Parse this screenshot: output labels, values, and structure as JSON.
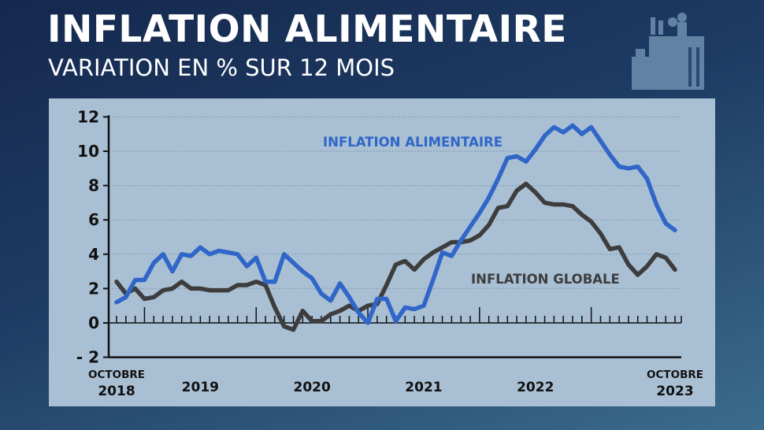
{
  "header": {
    "title": "INFLATION ALIMENTAIRE",
    "subtitle": "VARIATION EN % SUR 12 MOIS",
    "icon": "grocery-bag-icon"
  },
  "chart_data": {
    "type": "line",
    "title": "INFLATION ALIMENTAIRE",
    "subtitle": "VARIATION EN % SUR 12 MOIS",
    "x_start": "2018-10",
    "x_end": "2023-10",
    "x_frequency": "monthly",
    "ylim": [
      -2,
      12
    ],
    "y_ticks": [
      "12",
      "10",
      "8",
      "6",
      "4",
      "2",
      "0",
      "- 2"
    ],
    "y_tick_values": [
      12,
      10,
      8,
      6,
      4,
      2,
      0,
      -2
    ],
    "x_labels": [
      {
        "line1": "OCTOBRE",
        "line2": "2018"
      },
      {
        "line1": "",
        "line2": "2019"
      },
      {
        "line1": "",
        "line2": "2020"
      },
      {
        "line1": "",
        "line2": "2021"
      },
      {
        "line1": "",
        "line2": "2022"
      },
      {
        "line1": "OCTOBRE",
        "line2": "2023"
      }
    ],
    "grid": "horizontal dotted",
    "series": [
      {
        "name": "INFLATION ALIMENTAIRE",
        "color": "#2f66c8",
        "values": [
          1.2,
          1.5,
          2.5,
          2.5,
          3.5,
          4.0,
          3.0,
          4.0,
          3.9,
          4.4,
          4.0,
          4.2,
          4.1,
          4.0,
          3.3,
          3.8,
          2.4,
          2.4,
          4.0,
          3.5,
          3.0,
          2.6,
          1.7,
          1.3,
          2.3,
          1.5,
          0.6,
          0.0,
          1.4,
          1.4,
          0.1,
          0.9,
          0.8,
          1.0,
          2.5,
          4.1,
          3.9,
          4.8,
          5.6,
          6.4,
          7.3,
          8.4,
          9.6,
          9.7,
          9.4,
          10.1,
          10.9,
          11.4,
          11.1,
          11.5,
          11.0,
          11.4,
          10.6,
          9.8,
          9.1,
          9.0,
          9.1,
          8.4,
          6.9,
          5.8,
          5.4
        ]
      },
      {
        "name": "INFLATION GLOBALE",
        "color": "#3d3d3d",
        "values": [
          2.4,
          1.7,
          2.0,
          1.4,
          1.5,
          1.9,
          2.0,
          2.4,
          2.0,
          2.0,
          1.9,
          1.9,
          1.9,
          2.2,
          2.2,
          2.4,
          2.2,
          0.9,
          -0.2,
          -0.4,
          0.7,
          0.1,
          0.1,
          0.5,
          0.7,
          1.0,
          0.7,
          1.0,
          1.1,
          2.2,
          3.4,
          3.6,
          3.1,
          3.7,
          4.1,
          4.4,
          4.7,
          4.7,
          4.8,
          5.1,
          5.7,
          6.7,
          6.8,
          7.7,
          8.1,
          7.6,
          7.0,
          6.9,
          6.9,
          6.8,
          6.3,
          5.9,
          5.2,
          4.3,
          4.4,
          3.4,
          2.8,
          3.3,
          4.0,
          3.8,
          3.1
        ]
      }
    ]
  }
}
